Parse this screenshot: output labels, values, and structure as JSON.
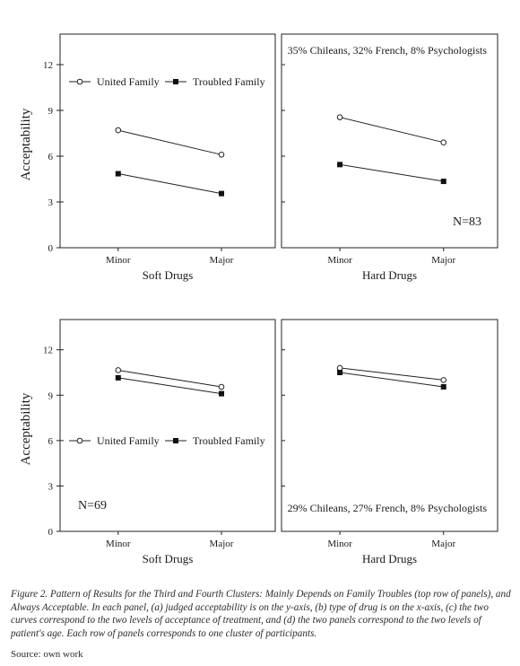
{
  "chart_data": {
    "type": "line",
    "y_axis_label": "Acceptability",
    "y_ticks": [
      0,
      3,
      6,
      9,
      12
    ],
    "ylim": [
      0,
      14
    ],
    "x_tick_labels": [
      "Minor",
      "Major"
    ],
    "legend_labels": [
      "United Family",
      "Troubled Family"
    ],
    "rows": [
      {
        "note": "N=83",
        "legend_position": "top-left",
        "panels": [
          {
            "xlabel": "Soft Drugs",
            "annotation": "",
            "series": [
              {
                "name": "United Family",
                "marker": "open-circle",
                "values": [
                  7.7,
                  6.1
                ]
              },
              {
                "name": "Troubled Family",
                "marker": "filled-square",
                "values": [
                  4.85,
                  3.55
                ]
              }
            ]
          },
          {
            "xlabel": "Hard Drugs",
            "annotation": "35% Chileans, 32% French, 8% Psychologists",
            "series": [
              {
                "name": "United Family",
                "marker": "open-circle",
                "values": [
                  8.55,
                  6.9
                ]
              },
              {
                "name": "Troubled Family",
                "marker": "filled-square",
                "values": [
                  5.45,
                  4.35
                ]
              }
            ]
          }
        ]
      },
      {
        "note": "N=69",
        "legend_position": "bottom-left",
        "panels": [
          {
            "xlabel": "Soft Drugs",
            "annotation": "",
            "series": [
              {
                "name": "United Family",
                "marker": "open-circle",
                "values": [
                  10.65,
                  9.55
                ]
              },
              {
                "name": "Troubled Family",
                "marker": "filled-square",
                "values": [
                  10.15,
                  9.1
                ]
              }
            ]
          },
          {
            "xlabel": "Hard Drugs",
            "annotation": "29% Chileans, 27% French, 8% Psychologists",
            "series": [
              {
                "name": "United Family",
                "marker": "open-circle",
                "values": [
                  10.8,
                  10.0
                ]
              },
              {
                "name": "Troubled Family",
                "marker": "filled-square",
                "values": [
                  10.5,
                  9.55
                ]
              }
            ]
          }
        ]
      }
    ]
  },
  "caption": "Figure 2. Pattern of Results for the Third and Fourth Clusters: Mainly Depends on Family Troubles (top row of panels), and Always Acceptable. In each panel, (a) judged acceptability is on the y-axis, (b) type of drug is on the x-axis, (c) the two curves correspond to the two levels of acceptance of treatment, and (d) the two panels correspond to the two levels of patient's age. Each row of panels corresponds to one cluster of participants.",
  "source": "Source: own work"
}
